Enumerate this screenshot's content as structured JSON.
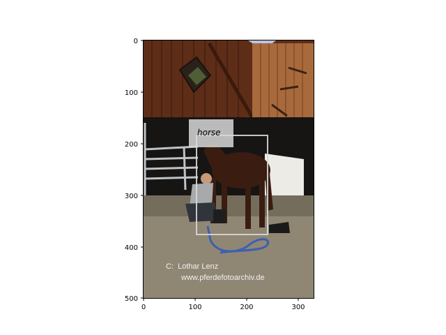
{
  "axes": {
    "x_ticks": [
      "0",
      "100",
      "200",
      "300"
    ],
    "y_ticks": [
      "0",
      "100",
      "200",
      "300",
      "400",
      "500"
    ]
  },
  "annotation": {
    "label": "horse",
    "box_color": "#d8d8d8"
  },
  "watermark": {
    "line1": "C:  Lothar Lenz",
    "line2": "www.pferdefotoarchiv.de"
  }
}
